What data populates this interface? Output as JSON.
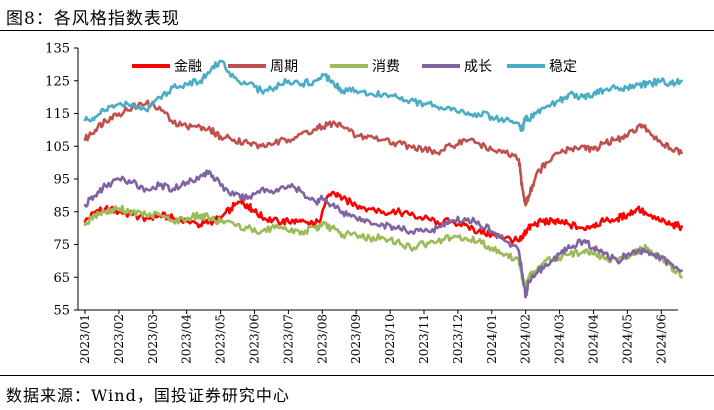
{
  "header": {
    "title": "图8：各风格指数表现"
  },
  "footer": {
    "source": "数据来源：Wind，国投证券研究中心"
  },
  "chart_data": {
    "type": "line",
    "title": "",
    "xlabel": "",
    "ylabel": "",
    "ylim": [
      55,
      135
    ],
    "yticks": [
      55,
      65,
      75,
      85,
      95,
      105,
      115,
      125,
      135
    ],
    "x_tick_labels": [
      "2023/01",
      "2023/02",
      "2023/03",
      "2023/04",
      "2023/05",
      "2023/06",
      "2023/07",
      "2023/08",
      "2023/09",
      "2023/10",
      "2023/11",
      "2023/12",
      "2024/01",
      "2024/02",
      "2024/03",
      "2024/04",
      "2024/05",
      "2024/06"
    ],
    "grid": false,
    "legend": "top",
    "series": [
      {
        "name": "金融",
        "color": "#ff0000",
        "x": [
          0,
          0.3,
          0.6,
          1.0,
          1.4,
          1.8,
          2.2,
          2.6,
          3.0,
          3.4,
          3.7,
          4.0,
          4.3,
          4.6,
          4.8,
          5.0,
          5.3,
          5.7,
          6.0,
          6.3,
          6.6,
          6.9,
          7.1,
          7.3,
          7.6,
          8.0,
          8.4,
          8.8,
          9.2,
          9.6,
          10.0,
          10.4,
          10.8,
          11.2,
          11.6,
          12.0,
          12.4,
          12.8,
          12.9,
          13.0,
          13.2,
          13.5,
          13.8,
          14.0,
          14.3,
          14.7,
          15.0,
          15.3,
          15.7,
          16.0,
          16.3,
          16.6,
          17.0,
          17.3,
          17.6
        ],
        "values": [
          82,
          85,
          86,
          85,
          84,
          83,
          84,
          83,
          82,
          81,
          82,
          83,
          86,
          88,
          87,
          85,
          83,
          82,
          82,
          82,
          81,
          82,
          88,
          91,
          89,
          87,
          86,
          85,
          85,
          84,
          83,
          82,
          82,
          81,
          79,
          78,
          77,
          76,
          77,
          79,
          81,
          82,
          82,
          82,
          81,
          80,
          81,
          82,
          83,
          84,
          86,
          84,
          82,
          81,
          80.5
        ]
      },
      {
        "name": "周期",
        "color": "#c0504d",
        "x": [
          0,
          0.3,
          0.6,
          1.0,
          1.4,
          1.8,
          2.2,
          2.6,
          3.0,
          3.4,
          3.7,
          4.0,
          4.4,
          4.8,
          5.2,
          5.6,
          6.0,
          6.4,
          6.8,
          7.0,
          7.3,
          7.6,
          8.0,
          8.4,
          8.8,
          9.2,
          9.6,
          10.0,
          10.4,
          10.8,
          11.2,
          11.6,
          12.0,
          12.4,
          12.8,
          12.9,
          13.0,
          13.1,
          13.3,
          13.6,
          14.0,
          14.3,
          14.7,
          15.0,
          15.3,
          15.7,
          16.0,
          16.3,
          16.6,
          17.0,
          17.3,
          17.6
        ],
        "values": [
          107,
          110,
          113,
          115,
          117,
          118,
          117,
          112,
          111,
          111,
          110,
          108,
          107,
          106,
          105,
          106,
          107,
          109,
          110,
          111,
          112,
          111,
          108,
          108,
          107,
          106,
          105,
          104,
          103,
          105,
          107,
          106,
          104,
          103,
          101,
          92,
          87,
          90,
          96,
          100,
          103,
          104,
          105,
          104,
          106,
          107,
          108,
          111,
          110,
          106,
          104,
          103
        ]
      },
      {
        "name": "消费",
        "color": "#9bbb59",
        "x": [
          0,
          0.3,
          0.6,
          1.0,
          1.4,
          1.8,
          2.2,
          2.6,
          3.0,
          3.4,
          3.7,
          4.0,
          4.4,
          4.8,
          5.2,
          5.6,
          6.0,
          6.4,
          6.8,
          7.0,
          7.3,
          7.6,
          8.0,
          8.4,
          8.8,
          9.2,
          9.6,
          10.0,
          10.4,
          10.8,
          11.2,
          11.6,
          12.0,
          12.4,
          12.8,
          12.9,
          13.0,
          13.1,
          13.3,
          13.6,
          14.0,
          14.3,
          14.7,
          15.0,
          15.3,
          15.7,
          16.0,
          16.3,
          16.6,
          17.0,
          17.3,
          17.6
        ],
        "values": [
          81,
          84,
          85,
          86,
          85,
          84,
          84,
          82,
          83,
          84,
          83,
          82,
          81,
          80,
          79,
          80,
          79,
          79,
          80,
          81,
          80,
          78,
          78,
          77,
          77,
          76,
          74,
          75,
          76,
          77,
          77,
          76,
          74,
          72,
          70,
          65,
          62,
          65,
          67,
          70,
          71,
          72,
          73,
          72,
          71,
          70,
          71,
          73,
          74,
          71,
          68,
          65
        ]
      },
      {
        "name": "成长",
        "color": "#8064a2",
        "x": [
          0,
          0.3,
          0.6,
          1.0,
          1.4,
          1.8,
          2.2,
          2.6,
          3.0,
          3.4,
          3.7,
          4.0,
          4.4,
          4.8,
          5.2,
          5.6,
          6.0,
          6.4,
          6.8,
          7.0,
          7.3,
          7.6,
          8.0,
          8.4,
          8.8,
          9.2,
          9.6,
          10.0,
          10.4,
          10.8,
          11.2,
          11.6,
          12.0,
          12.4,
          12.8,
          12.9,
          13.0,
          13.1,
          13.3,
          13.6,
          14.0,
          14.3,
          14.7,
          15.0,
          15.3,
          15.7,
          16.0,
          16.3,
          16.6,
          17.0,
          17.3,
          17.6
        ],
        "values": [
          87,
          90,
          93,
          95,
          94,
          92,
          93,
          92,
          94,
          96,
          97,
          93,
          90,
          89,
          92,
          91,
          93,
          91,
          88,
          89,
          87,
          85,
          83,
          82,
          81,
          80,
          79,
          79,
          80,
          82,
          83,
          82,
          79,
          76,
          73,
          66,
          59,
          64,
          66,
          69,
          72,
          74,
          76,
          74,
          72,
          70,
          72,
          73,
          73,
          71,
          69,
          67
        ]
      },
      {
        "name": "稳定",
        "color": "#4bacc6",
        "x": [
          0,
          0.3,
          0.6,
          1.0,
          1.4,
          1.8,
          2.2,
          2.6,
          3.0,
          3.4,
          3.7,
          4.0,
          4.4,
          4.8,
          5.2,
          5.6,
          6.0,
          6.4,
          6.8,
          7.0,
          7.3,
          7.6,
          8.0,
          8.4,
          8.8,
          9.2,
          9.6,
          10.0,
          10.4,
          10.8,
          11.2,
          11.6,
          12.0,
          12.4,
          12.8,
          12.9,
          13.0,
          13.1,
          13.3,
          13.6,
          14.0,
          14.3,
          14.7,
          15.0,
          15.3,
          15.7,
          16.0,
          16.3,
          16.6,
          17.0,
          17.3,
          17.6
        ],
        "values": [
          113,
          114,
          116,
          118,
          118,
          116,
          120,
          123,
          124,
          125,
          128,
          131,
          126,
          124,
          122,
          123,
          125,
          124,
          125,
          127,
          125,
          122,
          122,
          121,
          121,
          120,
          119,
          118,
          117,
          116,
          115,
          115,
          114,
          113,
          112,
          110,
          114,
          113,
          115,
          117,
          119,
          121,
          120,
          121,
          122,
          123,
          123,
          124,
          124,
          125,
          124,
          125
        ]
      }
    ]
  }
}
